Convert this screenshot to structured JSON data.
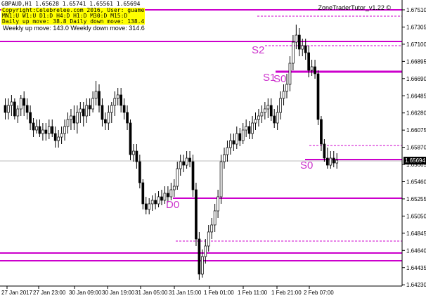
{
  "header": {
    "symbol_line": "GBPAUD,H1  1.65628 1.65741 1.65561 1.65694",
    "copyright": "Copyright:Celebrelee.com 2016, User: guame",
    "timeframes": "MN1:U W1:U D1:D H4:D H1:D M30:D M15:D",
    "daily_move": "Daily up move: 38.8  Daily down move: 138.4",
    "weekly_move": "Weekly up move: 143.0  Weekly down move: 314.6",
    "tool_name": "ZoneTraderTutor_v1.22 ©"
  },
  "current_price": "1.65694",
  "price_axis": [
    "1.67510",
    "1.67305",
    "1.67100",
    "1.66895",
    "1.66690",
    "1.66485",
    "1.66280",
    "1.66075",
    "1.65870",
    "1.65665",
    "1.65460",
    "1.65255",
    "1.65050",
    "1.64845",
    "1.64640",
    "1.64435",
    "1.64230"
  ],
  "time_axis": [
    "27 Jan 2017",
    "27 Jan 23:00",
    "30 Jan 09:00",
    "30 Jan 19:00",
    "31 Jan 05:00",
    "31 Jan 15:00",
    "1 Feb 01:00",
    "1 Feb 11:00",
    "1 Feb 21:00",
    "2 Feb 07:00"
  ],
  "zones": {
    "s2": "S2",
    "s1": "S1",
    "s0_upper": "S0",
    "s0_lower": "S0",
    "d0": "D0"
  },
  "colors": {
    "zone_line": "#cc00cc",
    "candle": "#000000",
    "info_bg": "#ffff00"
  }
}
